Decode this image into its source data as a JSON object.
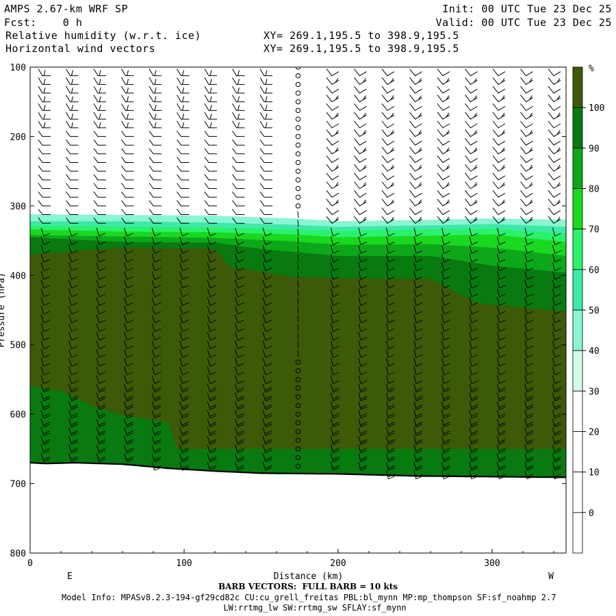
{
  "header": {
    "model_title": "AMPS 2.67-km WRF SP",
    "fcst_line": "Fcst:    0 h",
    "field1": "Relative humidity (w.r.t. ice)",
    "field2": "Horizontal wind vectors",
    "init_line": "Init: 00 UTC Tue 23 Dec 25",
    "valid_line": "Valid: 00 UTC Tue 23 Dec 25",
    "xy_line1": "XY= 269.1,195.5 to 398.9,195.5",
    "xy_line2": "XY= 269.1,195.5 to 398.9,195.5"
  },
  "footer": {
    "barb_note": "BARB VECTORS:  FULL BARB = 10 kts",
    "model_info": "Model Info: MPASv8.2.3-194-gf29cd82c CU:cu_grell_freitas PBL:bl_mynn MP:mp_thompson SF:sf_noahmp 2.7",
    "model_info2": "LW:rrtmg_lw SW:rrtmg_sw SFLAY:sf_mynn"
  },
  "chart_data": {
    "type": "heatmap",
    "title": "Relative humidity (w.r.t. ice)",
    "xlabel": "Distance (km)",
    "ylabel": "Pressure (hPa)",
    "xlim": [
      0,
      348
    ],
    "ylim": [
      100,
      800
    ],
    "y_inverted": true,
    "x_ticks": [
      0,
      100,
      200,
      300
    ],
    "y_ticks": [
      100,
      200,
      300,
      400,
      500,
      600,
      700,
      800
    ],
    "x_end_labels": {
      "left": "E",
      "right": "W"
    },
    "colorbar": {
      "unit": "%",
      "levels": [
        0,
        10,
        20,
        30,
        40,
        50,
        60,
        70,
        80,
        90,
        100
      ],
      "colors": [
        "#ffffff",
        "#ffffff",
        "#ffffff",
        "#ffffff",
        "#d2fbe8",
        "#8af5d5",
        "#3fe8a8",
        "#2af26a",
        "#1ad820",
        "#0ca81a",
        "#087a10",
        "#3d5a08"
      ]
    },
    "rh_boundaries_top": [
      {
        "rh_ge": 40,
        "x": [
          0,
          60,
          120,
          170,
          200,
          260,
          300,
          348
        ],
        "p": [
          312,
          313,
          314,
          318,
          322,
          320,
          318,
          320
        ]
      },
      {
        "rh_ge": 50,
        "x": [
          0,
          60,
          120,
          170,
          200,
          260,
          300,
          348
        ],
        "p": [
          322,
          322,
          324,
          327,
          330,
          328,
          326,
          330
        ]
      },
      {
        "rh_ge": 60,
        "x": [
          0,
          60,
          120,
          170,
          200,
          260,
          300,
          348
        ],
        "p": [
          328,
          330,
          331,
          334,
          336,
          334,
          333,
          340
        ]
      },
      {
        "rh_ge": 70,
        "x": [
          0,
          60,
          120,
          170,
          200,
          260,
          300,
          348
        ],
        "p": [
          334,
          337,
          338,
          341,
          345,
          343,
          341,
          352
        ]
      },
      {
        "rh_ge": 80,
        "x": [
          0,
          60,
          120,
          170,
          200,
          260,
          300,
          348
        ],
        "p": [
          342,
          344,
          346,
          351,
          356,
          355,
          360,
          372
        ]
      },
      {
        "rh_ge": 90,
        "x": [
          0,
          60,
          120,
          150,
          200,
          260,
          300,
          348
        ],
        "p": [
          345,
          352,
          353,
          362,
          372,
          372,
          386,
          396
        ]
      },
      {
        "rh_ge": 100,
        "x": [
          0,
          30,
          60,
          120,
          130,
          170,
          200,
          260,
          290,
          348
        ],
        "p": [
          370,
          365,
          360,
          362,
          388,
          402,
          404,
          405,
          440,
          452
        ]
      }
    ],
    "rh_low_band": {
      "rh_ge": 90,
      "rh_below": 100,
      "x": [
        0,
        20,
        40,
        60,
        80,
        90,
        95,
        348
      ],
      "p": [
        560,
        566,
        588,
        602,
        608,
        612,
        650,
        650
      ]
    },
    "terrain": {
      "x": [
        0,
        10,
        30,
        60,
        90,
        120,
        150,
        200,
        250,
        300,
        348
      ],
      "p": [
        670,
        671,
        670,
        672,
        678,
        682,
        685,
        686,
        689,
        690,
        691
      ]
    },
    "wind_barbs": {
      "x_columns": [
        8,
        26,
        44,
        62,
        80,
        98,
        116,
        134,
        152,
        174,
        196,
        214,
        232,
        250,
        268,
        286,
        304,
        322,
        340
      ],
      "calm_column_x": 174,
      "calm_levels_p": [
        100,
        300,
        520,
        690
      ]
    }
  }
}
